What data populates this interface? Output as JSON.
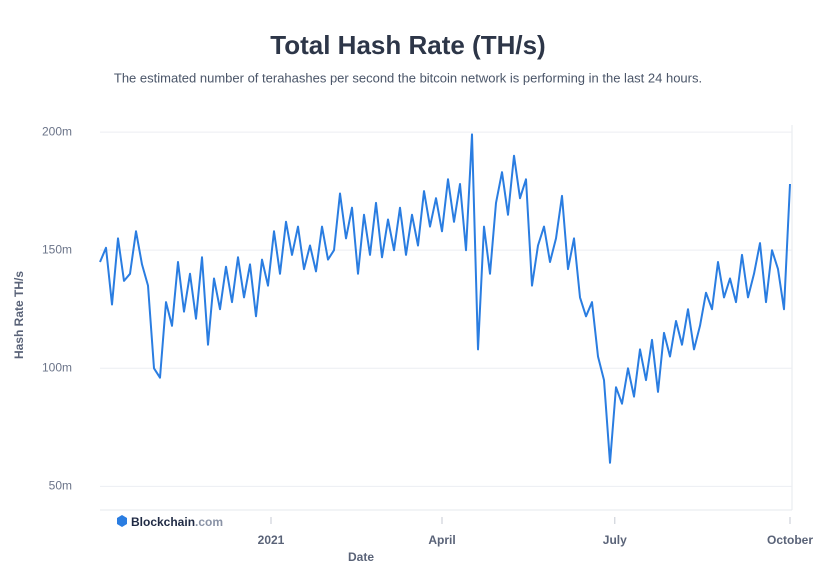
{
  "chart_data": {
    "type": "line",
    "title": "Total Hash Rate (TH/s)",
    "subtitle": "The estimated number of terahashes per second the bitcoin network is performing in the last 24 hours.",
    "xlabel": "Date",
    "ylabel": "Hash Rate TH/s",
    "watermark": "Blockchain",
    "watermark_suffix": ".com",
    "color": "#2a7de1",
    "grid": true,
    "values": [
      145,
      151,
      127,
      155,
      137,
      140,
      158,
      144,
      135,
      100,
      96,
      128,
      118,
      145,
      124,
      140,
      121,
      147,
      110,
      138,
      125,
      143,
      128,
      147,
      130,
      144,
      122,
      146,
      135,
      158,
      140,
      162,
      148,
      160,
      142,
      152,
      141,
      160,
      146,
      150,
      174,
      155,
      168,
      140,
      165,
      148,
      170,
      147,
      163,
      150,
      168,
      148,
      165,
      152,
      175,
      160,
      172,
      158,
      180,
      162,
      178,
      150,
      199,
      108,
      160,
      140,
      170,
      183,
      165,
      190,
      172,
      180,
      135,
      152,
      160,
      145,
      155,
      173,
      142,
      155,
      130,
      122,
      128,
      105,
      95,
      60,
      92,
      85,
      100,
      88,
      108,
      95,
      112,
      90,
      115,
      105,
      120,
      110,
      125,
      108,
      118,
      132,
      125,
      145,
      130,
      138,
      128,
      148,
      130,
      140,
      153,
      128,
      150,
      142,
      125,
      178
    ],
    "xlim": [
      0,
      115
    ],
    "xticks": [
      {
        "value": 28.5,
        "label": "2021"
      },
      {
        "value": 57,
        "label": "April"
      },
      {
        "value": 85.8,
        "label": "July"
      },
      {
        "value": 115,
        "label": "October"
      }
    ],
    "ylim": [
      40,
      203
    ],
    "yticks": [
      {
        "value": 50,
        "label": "50m"
      },
      {
        "value": 100,
        "label": "100m"
      },
      {
        "value": 150,
        "label": "150m"
      },
      {
        "value": 200,
        "label": "200m"
      }
    ]
  }
}
